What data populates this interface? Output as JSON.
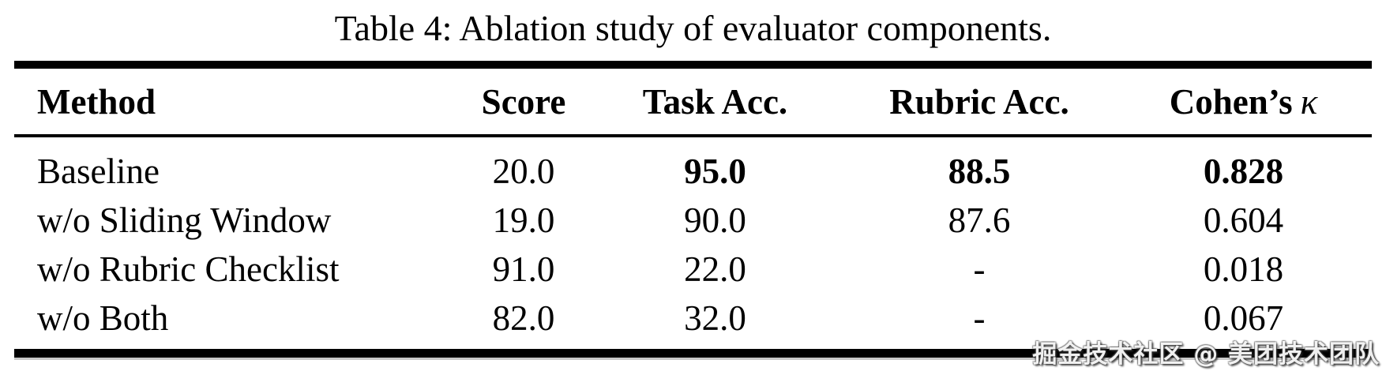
{
  "caption": "Table 4: Ablation study of evaluator components.",
  "table": {
    "columns": [
      "Method",
      "Score",
      "Task Acc.",
      "Rubric Acc."
    ],
    "kappa_column": {
      "prefix": "Cohen’s",
      "symbol": "κ"
    },
    "rows": [
      {
        "method": "Baseline",
        "score": "20.0",
        "task_acc": "95.0",
        "rubric_acc": "88.5",
        "cohens_kappa": "0.828"
      },
      {
        "method": "w/o Sliding Window",
        "score": "19.0",
        "task_acc": "90.0",
        "rubric_acc": "87.6",
        "cohens_kappa": "0.604"
      },
      {
        "method": "w/o Rubric Checklist",
        "score": "91.0",
        "task_acc": "22.0",
        "rubric_acc": "-",
        "cohens_kappa": "0.018"
      },
      {
        "method": "w/o Both",
        "score": "82.0",
        "task_acc": "32.0",
        "rubric_acc": "-",
        "cohens_kappa": "0.067"
      }
    ]
  },
  "watermark": "掘金技术社区 @ 美团技术团队",
  "colors": {
    "text": "#000000",
    "background": "#ffffff",
    "rule": "#000000",
    "rule_fringe": "#c9c9c9",
    "watermark_fill": "#ffffff"
  }
}
